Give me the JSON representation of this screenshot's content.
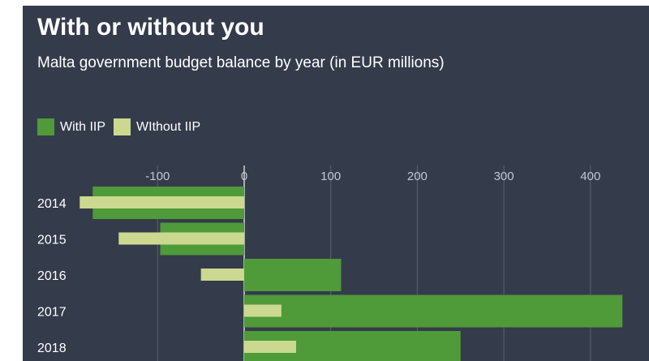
{
  "header": {
    "title": "With or without you",
    "subtitle": "Malta government budget balance by year (in EUR millions)"
  },
  "chart_data": {
    "type": "bar",
    "orientation": "horizontal",
    "title": "With or without you",
    "subtitle": "Malta government budget balance by year (in EUR millions)",
    "xlabel": "",
    "ylabel": "",
    "xlim": [
      -190,
      440
    ],
    "x_ticks": [
      -100,
      0,
      100,
      200,
      300,
      400
    ],
    "x_tick_labels": [
      "-100",
      "0",
      "100",
      "200",
      "300",
      "400"
    ],
    "categories": [
      "2014",
      "2015",
      "2016",
      "2017",
      "2018"
    ],
    "series": [
      {
        "name": "With IIP",
        "color": "#4f9a39",
        "values": [
          -175,
          -97,
          112,
          437,
          250
        ]
      },
      {
        "name": "WIthout IIP",
        "color": "#cad98f",
        "values": [
          -190,
          -145,
          -50,
          43,
          60
        ]
      }
    ],
    "legend_position": "top-left",
    "grid": true
  }
}
